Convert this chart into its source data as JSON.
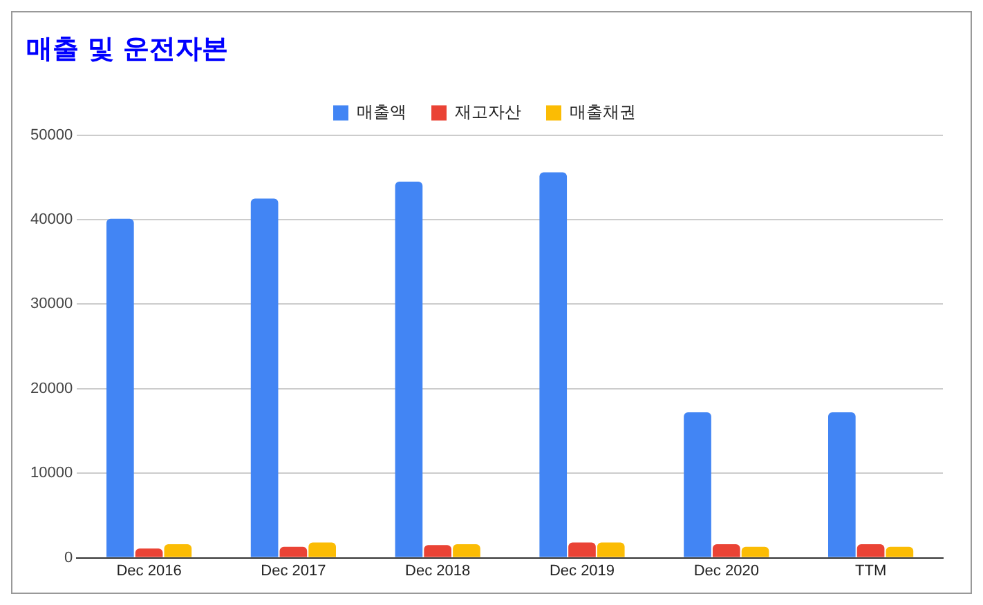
{
  "chart_data": {
    "type": "bar",
    "title": "매출 및 운전자본",
    "categories": [
      "Dec 2016",
      "Dec 2017",
      "Dec 2018",
      "Dec 2019",
      "Dec 2020",
      "TTM"
    ],
    "series": [
      {
        "name": "매출액",
        "color": "#4285f4",
        "values": [
          40100,
          42500,
          44500,
          45600,
          17200,
          17200
        ]
      },
      {
        "name": "재고자산",
        "color": "#ea4335",
        "values": [
          1100,
          1300,
          1500,
          1800,
          1600,
          1600
        ]
      },
      {
        "name": "매출채권",
        "color": "#fbbc04",
        "values": [
          1600,
          1800,
          1600,
          1800,
          1300,
          1300
        ]
      }
    ],
    "ylim": [
      0,
      50000
    ],
    "yticks": [
      0,
      10000,
      20000,
      30000,
      40000,
      50000
    ],
    "grid": "y",
    "legend": "top"
  }
}
